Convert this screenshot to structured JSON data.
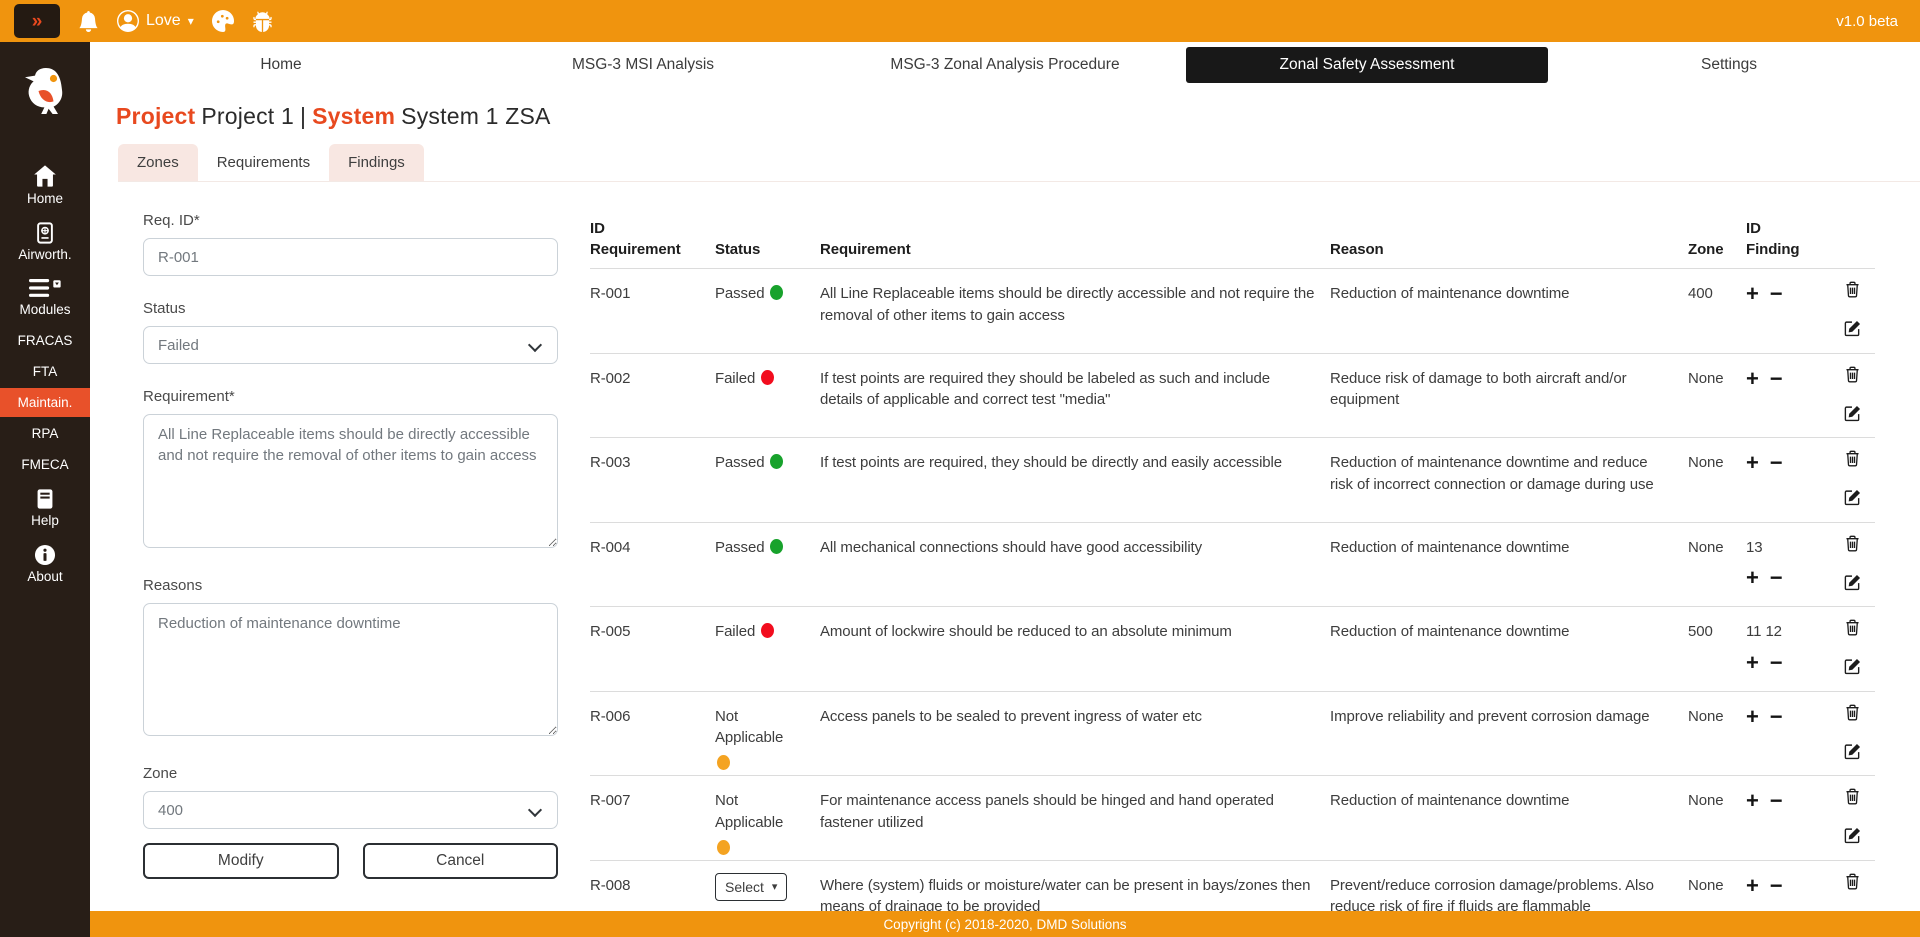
{
  "topbar": {
    "collapse": "»",
    "user_name": "Love",
    "caret_icon": "▾",
    "version": "v1.0 beta",
    "icons": {
      "collapse": "double-chevron-right",
      "notifications": "bell",
      "user": "person-circle",
      "theme": "palette",
      "debug": "bug"
    }
  },
  "sidebar": {
    "items": [
      {
        "label": "Home",
        "icon": "home",
        "active": false
      },
      {
        "label": "Airworth.",
        "icon": "passport",
        "active": false
      },
      {
        "label": "Modules",
        "icon": "modules",
        "active": false
      },
      {
        "label": "FRACAS",
        "icon": "",
        "active": false
      },
      {
        "label": "FTA",
        "icon": "",
        "active": false
      },
      {
        "label": "Maintain.",
        "icon": "",
        "active": true
      },
      {
        "label": "RPA",
        "icon": "",
        "active": false
      },
      {
        "label": "FMECA",
        "icon": "",
        "active": false
      },
      {
        "label": "Help",
        "icon": "book",
        "active": false
      },
      {
        "label": "About",
        "icon": "info",
        "active": false
      }
    ]
  },
  "nav": {
    "tabs": [
      {
        "label": "Home",
        "active": false
      },
      {
        "label": "MSG-3 MSI Analysis",
        "active": false
      },
      {
        "label": "MSG-3 Zonal Analysis Procedure",
        "active": false
      },
      {
        "label": "Zonal Safety Assessment",
        "active": true
      },
      {
        "label": "Settings",
        "active": false
      }
    ]
  },
  "page": {
    "project_label": "Project",
    "project_value": "Project 1",
    "separator": "|",
    "system_label": "System",
    "system_value": "System 1 ZSA"
  },
  "subtabs": [
    {
      "label": "Zones",
      "active": false
    },
    {
      "label": "Requirements",
      "active": true
    },
    {
      "label": "Findings",
      "active": false
    }
  ],
  "form": {
    "req_id_label": "Req. ID*",
    "req_id_value": "R-001",
    "status_label": "Status",
    "status_value": "Failed",
    "requirement_label": "Requirement*",
    "requirement_value": "All Line Replaceable items should be directly accessible and not require the removal of other items to gain access",
    "reasons_label": "Reasons",
    "reasons_value": "Reduction of maintenance downtime",
    "zone_label": "Zone",
    "zone_value": "400",
    "modify_label": "Modify",
    "cancel_label": "Cancel"
  },
  "table": {
    "header": {
      "id_requirement": [
        "ID",
        "Requirement"
      ],
      "status": "Status",
      "requirement": "Requirement",
      "reason": "Reason",
      "zone": "Zone",
      "id_finding": [
        "ID",
        "Finding"
      ]
    },
    "select_label": "Select",
    "select_caret": "▾",
    "actions": {
      "add": "+",
      "remove": "−",
      "delete_icon": "trash-icon",
      "edit_icon": "edit-icon"
    },
    "rows": [
      {
        "id": "R-001",
        "status": "Passed",
        "status_type": "passed",
        "requirement": "All Line Replaceable items should be directly accessible and not require the removal of other items to gain access",
        "reason": "Reduction of maintenance downtime",
        "zone": "400",
        "finding": ""
      },
      {
        "id": "R-002",
        "status": "Failed",
        "status_type": "failed",
        "requirement": "If test points are required they should be labeled as such and include details of applicable and correct test \"media\"",
        "reason": "Reduce risk of damage to both aircraft and/or equipment",
        "zone": "None",
        "finding": ""
      },
      {
        "id": "R-003",
        "status": "Passed",
        "status_type": "passed",
        "requirement": "If test points are required, they should be directly and easily accessible",
        "reason": "Reduction of maintenance downtime and reduce risk of incorrect connection or damage during use",
        "zone": "None",
        "finding": ""
      },
      {
        "id": "R-004",
        "status": "Passed",
        "status_type": "passed",
        "requirement": "All mechanical connections should have good accessibility",
        "reason": "Reduction of maintenance downtime",
        "zone": "None",
        "finding": "13"
      },
      {
        "id": "R-005",
        "status": "Failed",
        "status_type": "failed",
        "requirement": "Amount of lockwire should be reduced to an absolute minimum",
        "reason": "Reduction of maintenance downtime",
        "zone": "500",
        "finding": "11 12"
      },
      {
        "id": "R-006",
        "status": "Not Applicable",
        "status_type": "na",
        "requirement": "Access panels to be sealed to prevent ingress of water etc",
        "reason": "Improve reliability and prevent corrosion damage",
        "zone": "None",
        "finding": ""
      },
      {
        "id": "R-007",
        "status": "Not Applicable",
        "status_type": "na",
        "requirement": "For maintenance access panels should be hinged and hand operated fastener utilized",
        "reason": "Reduction of maintenance downtime",
        "zone": "None",
        "finding": ""
      },
      {
        "id": "R-008",
        "status": "Select",
        "status_type": "select",
        "requirement": "Where (system) fluids or moisture/water can be present in bays/zones then means of drainage to be provided",
        "reason": "Prevent/reduce corrosion damage/problems. Also reduce risk of fire if fluids are flammable",
        "zone": "None",
        "finding": ""
      }
    ]
  },
  "footer": {
    "copyright": "Copyright (c) 2018-2020, DMD Solutions"
  },
  "colors": {
    "topbar": "#F0940E",
    "sidebar_bg": "#281E17",
    "accent": "#E8491F",
    "active_sidebar_bg": "#E8512A",
    "active_nav_tab_bg": "#181818",
    "subtab_inactive_bg": "#F8E7E2",
    "status_passed": "#18A22C",
    "status_failed": "#F20D1E",
    "status_not_applicable": "#F4A321"
  }
}
